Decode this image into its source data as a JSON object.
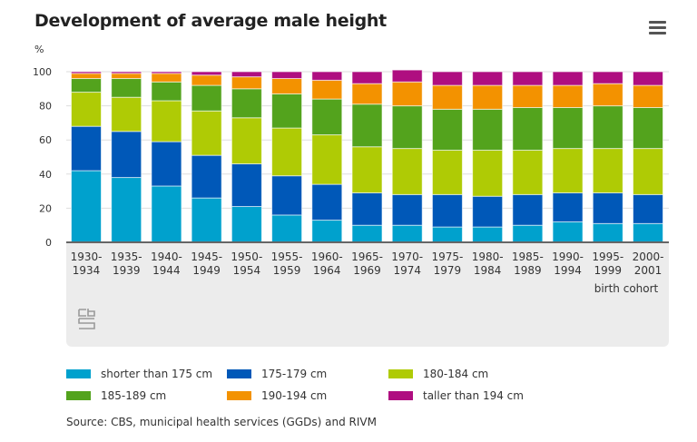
{
  "chart_data": {
    "type": "bar",
    "stacked": true,
    "title": "Development of average male height",
    "ylabel": "%",
    "xlabel": "birth cohort",
    "ylim": [
      0,
      100
    ],
    "yticks": [
      0,
      20,
      40,
      60,
      80,
      100
    ],
    "grid": true,
    "legend_position": "bottom",
    "categories": [
      [
        "1930-",
        "1934"
      ],
      [
        "1935-",
        "1939"
      ],
      [
        "1940-",
        "1944"
      ],
      [
        "1945-",
        "1949"
      ],
      [
        "1950-",
        "1954"
      ],
      [
        "1955-",
        "1959"
      ],
      [
        "1960-",
        "1964"
      ],
      [
        "1965-",
        "1969"
      ],
      [
        "1970-",
        "1974"
      ],
      [
        "1975-",
        "1979"
      ],
      [
        "1980-",
        "1984"
      ],
      [
        "1985-",
        "1989"
      ],
      [
        "1990-",
        "1994"
      ],
      [
        "1995-",
        "1999"
      ],
      [
        "2000-",
        "2001"
      ]
    ],
    "series": [
      {
        "name": "shorter than 175 cm",
        "color": "#00a1cd",
        "values": [
          42,
          38,
          33,
          26,
          21,
          16,
          13,
          10,
          10,
          9,
          9,
          10,
          12,
          11,
          11
        ]
      },
      {
        "name": "175-179 cm",
        "color": "#0058b8",
        "values": [
          26,
          27,
          26,
          25,
          25,
          23,
          21,
          19,
          18,
          19,
          18,
          18,
          17,
          18,
          17
        ]
      },
      {
        "name": "180-184 cm",
        "color": "#afcb05",
        "values": [
          20,
          20,
          24,
          26,
          27,
          28,
          29,
          27,
          27,
          26,
          27,
          26,
          26,
          26,
          27
        ]
      },
      {
        "name": "185-189 cm",
        "color": "#53a31d",
        "values": [
          8,
          11,
          11,
          15,
          17,
          20,
          21,
          25,
          25,
          24,
          24,
          25,
          24,
          25,
          24
        ]
      },
      {
        "name": "190-194 cm",
        "color": "#f39200",
        "values": [
          3,
          3,
          5,
          6,
          7,
          9,
          11,
          12,
          14,
          14,
          14,
          13,
          13,
          13,
          13
        ]
      },
      {
        "name": "taller than 194 cm",
        "color": "#af0e80",
        "values": [
          1,
          1,
          1,
          2,
          3,
          4,
          5,
          7,
          7,
          8,
          8,
          8,
          8,
          7,
          8
        ]
      }
    ]
  },
  "source": "Source: CBS, municipal health services (GGDs) and RIVM",
  "logo_text": "cbs",
  "menu_icon": "hamburger-menu-icon"
}
